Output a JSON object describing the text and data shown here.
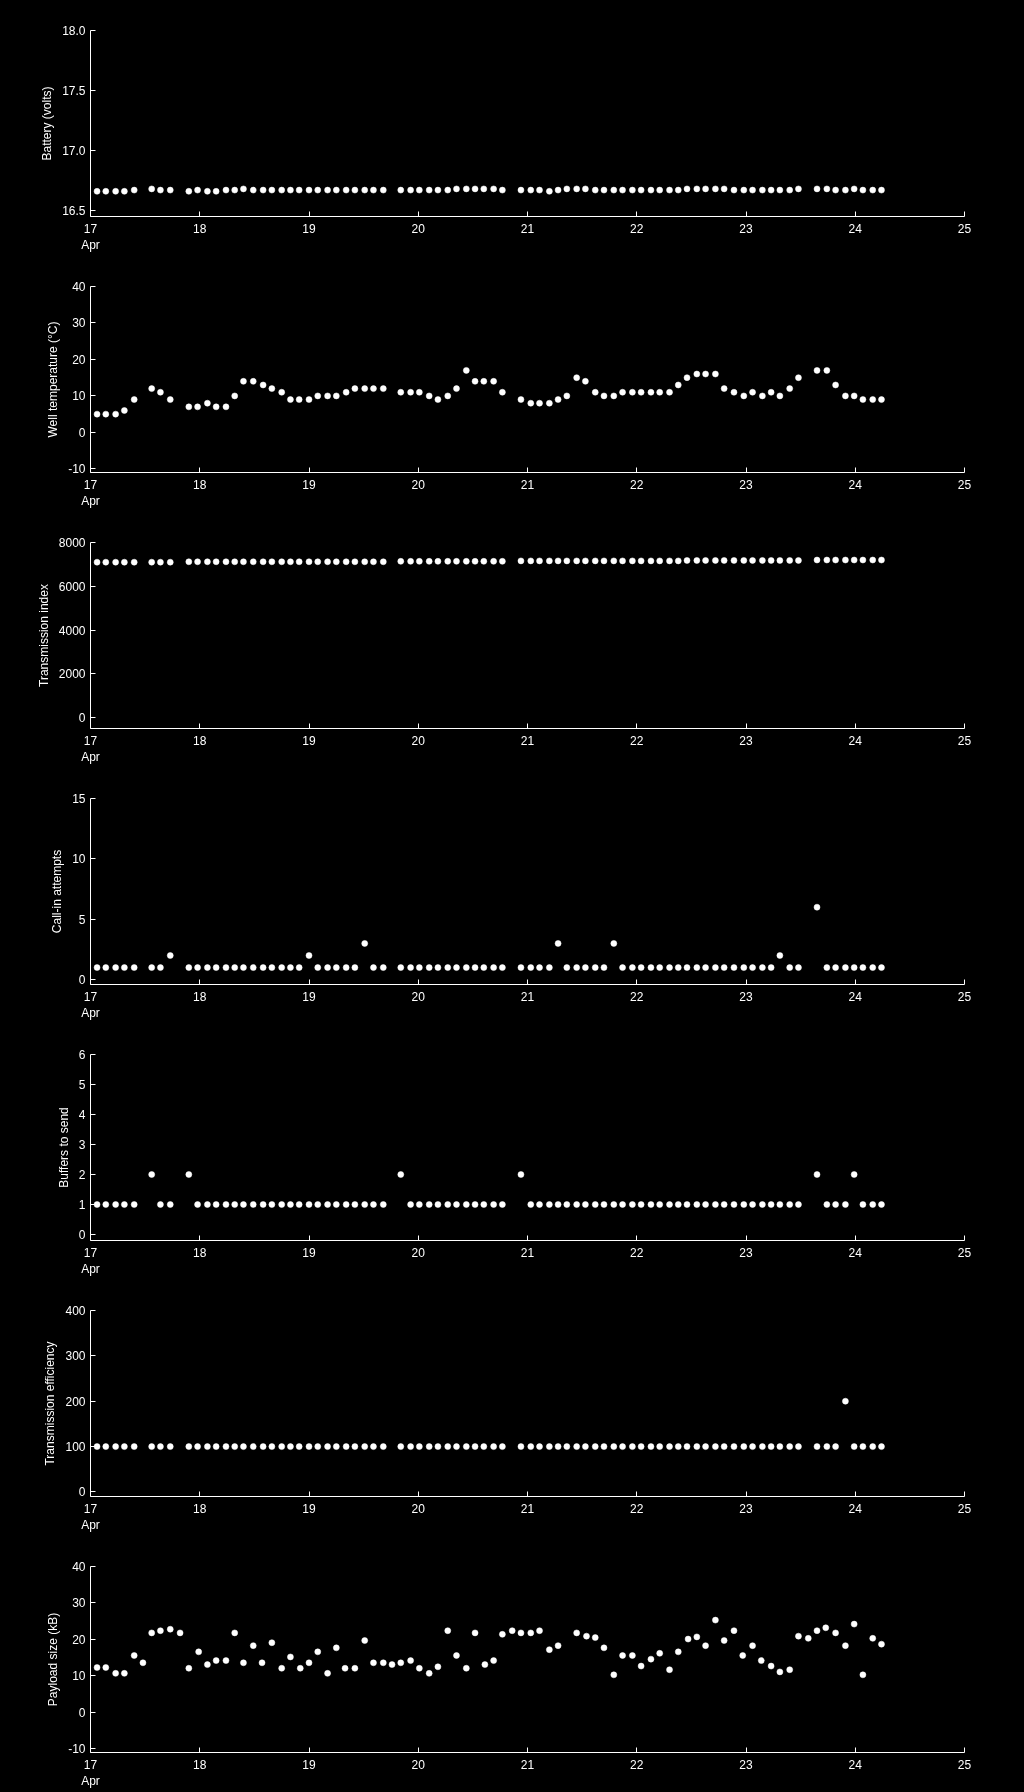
{
  "chart_data": [
    {
      "type": "scatter",
      "ylabel": "Battery (volts)",
      "color": "#ffffff",
      "marker": "circle",
      "grid": false,
      "xlim": [
        17,
        25
      ],
      "xticks": [
        {
          "value": 17,
          "label": "17\nApr"
        },
        18,
        19,
        20,
        21,
        22,
        23,
        24,
        25
      ],
      "ylim": [
        16.45,
        18.0
      ],
      "yticks": [
        {
          "value": 16.5,
          "label": "16.5"
        },
        {
          "value": 17,
          "label": "17.0"
        },
        {
          "value": 17.5,
          "label": "17.5"
        },
        {
          "value": 18,
          "label": "18.0"
        }
      ],
      "x": [
        17.06,
        17.14,
        17.23,
        17.31,
        17.4,
        17.56,
        17.64,
        17.73,
        17.9,
        17.98,
        18.07,
        18.15,
        18.24,
        18.32,
        18.4,
        18.49,
        18.58,
        18.66,
        18.75,
        18.83,
        18.91,
        19.0,
        19.08,
        19.17,
        19.25,
        19.34,
        19.42,
        19.51,
        19.59,
        19.68,
        19.84,
        19.93,
        20.01,
        20.1,
        20.18,
        20.27,
        20.35,
        20.44,
        20.52,
        20.6,
        20.69,
        20.77,
        20.94,
        21.03,
        21.11,
        21.2,
        21.28,
        21.36,
        21.45,
        21.53,
        21.62,
        21.7,
        21.79,
        21.87,
        21.96,
        22.04,
        22.13,
        22.21,
        22.3,
        22.38,
        22.46,
        22.55,
        22.63,
        22.72,
        22.8,
        22.89,
        22.98,
        23.06,
        23.15,
        23.23,
        23.31,
        23.4,
        23.48,
        23.65,
        23.74,
        23.82,
        23.91,
        23.99,
        24.07,
        24.16,
        24.24
      ],
      "values": [
        16.66,
        16.66,
        16.66,
        16.66,
        16.67,
        16.68,
        16.67,
        16.67,
        16.66,
        16.67,
        16.66,
        16.66,
        16.67,
        16.67,
        16.68,
        16.67,
        16.67,
        16.67,
        16.67,
        16.67,
        16.67,
        16.67,
        16.67,
        16.67,
        16.67,
        16.67,
        16.67,
        16.67,
        16.67,
        16.67,
        16.67,
        16.67,
        16.67,
        16.67,
        16.67,
        16.67,
        16.68,
        16.68,
        16.68,
        16.68,
        16.68,
        16.67,
        16.67,
        16.67,
        16.67,
        16.66,
        16.67,
        16.68,
        16.68,
        16.68,
        16.67,
        16.67,
        16.67,
        16.67,
        16.67,
        16.67,
        16.67,
        16.67,
        16.67,
        16.67,
        16.68,
        16.68,
        16.68,
        16.68,
        16.68,
        16.67,
        16.67,
        16.67,
        16.67,
        16.67,
        16.67,
        16.67,
        16.68,
        16.68,
        16.68,
        16.67,
        16.67,
        16.68,
        16.67,
        16.67,
        16.67
      ]
    },
    {
      "type": "scatter",
      "ylabel": "Well temperature (°C)",
      "color": "#ffffff",
      "marker": "circle",
      "grid": false,
      "xlim": [
        17,
        25
      ],
      "xticks": [
        {
          "value": 17,
          "label": "17\nApr"
        },
        18,
        19,
        20,
        21,
        22,
        23,
        24,
        25
      ],
      "ylim": [
        -11,
        40
      ],
      "yticks": [
        -10,
        0,
        10,
        20,
        30,
        40
      ],
      "x": [
        17.06,
        17.14,
        17.23,
        17.31,
        17.4,
        17.56,
        17.64,
        17.73,
        17.9,
        17.98,
        18.07,
        18.15,
        18.24,
        18.32,
        18.4,
        18.49,
        18.58,
        18.66,
        18.75,
        18.83,
        18.91,
        19.0,
        19.08,
        19.17,
        19.25,
        19.34,
        19.42,
        19.51,
        19.59,
        19.68,
        19.84,
        19.93,
        20.01,
        20.1,
        20.18,
        20.27,
        20.35,
        20.44,
        20.52,
        20.6,
        20.69,
        20.77,
        20.94,
        21.03,
        21.11,
        21.2,
        21.28,
        21.36,
        21.45,
        21.53,
        21.62,
        21.7,
        21.79,
        21.87,
        21.96,
        22.04,
        22.13,
        22.21,
        22.3,
        22.38,
        22.46,
        22.55,
        22.63,
        22.72,
        22.8,
        22.89,
        22.98,
        23.06,
        23.15,
        23.23,
        23.31,
        23.4,
        23.48,
        23.65,
        23.74,
        23.82,
        23.91,
        23.99,
        24.07,
        24.16,
        24.24
      ],
      "values": [
        5,
        5,
        5,
        6,
        9,
        12,
        11,
        9,
        7,
        7,
        8,
        7,
        7,
        10,
        14,
        14,
        13,
        12,
        11,
        9,
        9,
        9,
        10,
        10,
        10,
        11,
        12,
        12,
        12,
        12,
        11,
        11,
        11,
        10,
        9,
        10,
        12,
        17,
        14,
        14,
        14,
        11,
        9,
        8,
        8,
        8,
        9,
        10,
        15,
        14,
        11,
        10,
        10,
        11,
        11,
        11,
        11,
        11,
        11,
        13,
        15,
        16,
        16,
        16,
        12,
        11,
        10,
        11,
        10,
        11,
        10,
        12,
        15,
        17,
        17,
        13,
        10,
        10,
        9,
        9,
        9
      ]
    },
    {
      "type": "scatter",
      "ylabel": "Transmission index",
      "color": "#ffffff",
      "marker": "circle",
      "grid": false,
      "xlim": [
        17,
        25
      ],
      "xticks": [
        {
          "value": 17,
          "label": "17\nApr"
        },
        18,
        19,
        20,
        21,
        22,
        23,
        24,
        25
      ],
      "ylim": [
        -500,
        8000
      ],
      "yticks": [
        0,
        2000,
        4000,
        6000,
        8000
      ],
      "x": [
        17.06,
        17.14,
        17.23,
        17.31,
        17.4,
        17.56,
        17.64,
        17.73,
        17.9,
        17.98,
        18.07,
        18.15,
        18.24,
        18.32,
        18.4,
        18.49,
        18.58,
        18.66,
        18.75,
        18.83,
        18.91,
        19.0,
        19.08,
        19.17,
        19.25,
        19.34,
        19.42,
        19.51,
        19.59,
        19.68,
        19.84,
        19.93,
        20.01,
        20.1,
        20.18,
        20.27,
        20.35,
        20.44,
        20.52,
        20.6,
        20.69,
        20.77,
        20.94,
        21.03,
        21.11,
        21.2,
        21.28,
        21.36,
        21.45,
        21.53,
        21.62,
        21.7,
        21.79,
        21.87,
        21.96,
        22.04,
        22.13,
        22.21,
        22.3,
        22.38,
        22.46,
        22.55,
        22.63,
        22.72,
        22.8,
        22.89,
        22.98,
        23.06,
        23.15,
        23.23,
        23.31,
        23.4,
        23.48,
        23.65,
        23.74,
        23.82,
        23.91,
        23.99,
        24.07,
        24.16,
        24.24
      ],
      "values": [
        7100,
        7100,
        7100,
        7100,
        7100,
        7100,
        7100,
        7100,
        7120,
        7120,
        7120,
        7120,
        7120,
        7120,
        7120,
        7120,
        7120,
        7120,
        7120,
        7120,
        7120,
        7120,
        7120,
        7120,
        7120,
        7120,
        7120,
        7120,
        7120,
        7120,
        7140,
        7140,
        7140,
        7140,
        7140,
        7140,
        7140,
        7140,
        7140,
        7140,
        7140,
        7140,
        7160,
        7160,
        7160,
        7160,
        7160,
        7160,
        7160,
        7160,
        7160,
        7160,
        7160,
        7160,
        7160,
        7160,
        7160,
        7160,
        7160,
        7160,
        7180,
        7180,
        7180,
        7180,
        7180,
        7180,
        7180,
        7180,
        7180,
        7180,
        7180,
        7180,
        7180,
        7200,
        7200,
        7200,
        7200,
        7200,
        7200,
        7200,
        7200
      ]
    },
    {
      "type": "scatter",
      "ylabel": "Call-in attempts",
      "color": "#ffffff",
      "marker": "circle",
      "grid": false,
      "xlim": [
        17,
        25
      ],
      "xticks": [
        {
          "value": 17,
          "label": "17\nApr"
        },
        18,
        19,
        20,
        21,
        22,
        23,
        24,
        25
      ],
      "ylim": [
        -0.4,
        15
      ],
      "yticks": [
        0,
        5,
        10,
        15
      ],
      "x": [
        17.06,
        17.14,
        17.23,
        17.31,
        17.4,
        17.56,
        17.64,
        17.73,
        17.9,
        17.98,
        18.07,
        18.15,
        18.24,
        18.32,
        18.4,
        18.49,
        18.58,
        18.66,
        18.75,
        18.83,
        18.91,
        19.0,
        19.08,
        19.17,
        19.25,
        19.34,
        19.42,
        19.51,
        19.59,
        19.68,
        19.84,
        19.93,
        20.01,
        20.1,
        20.18,
        20.27,
        20.35,
        20.44,
        20.52,
        20.6,
        20.69,
        20.77,
        20.94,
        21.03,
        21.11,
        21.2,
        21.28,
        21.36,
        21.45,
        21.53,
        21.62,
        21.7,
        21.79,
        21.87,
        21.96,
        22.04,
        22.13,
        22.21,
        22.3,
        22.38,
        22.46,
        22.55,
        22.63,
        22.72,
        22.8,
        22.89,
        22.98,
        23.06,
        23.15,
        23.23,
        23.31,
        23.4,
        23.48,
        23.65,
        23.74,
        23.82,
        23.91,
        23.99,
        24.07,
        24.16,
        24.24
      ],
      "values": [
        1,
        1,
        1,
        1,
        1,
        1,
        1,
        2,
        1,
        1,
        1,
        1,
        1,
        1,
        1,
        1,
        1,
        1,
        1,
        1,
        1,
        2,
        1,
        1,
        1,
        1,
        1,
        3,
        1,
        1,
        1,
        1,
        1,
        1,
        1,
        1,
        1,
        1,
        1,
        1,
        1,
        1,
        1,
        1,
        1,
        1,
        3,
        1,
        1,
        1,
        1,
        1,
        3,
        1,
        1,
        1,
        1,
        1,
        1,
        1,
        1,
        1,
        1,
        1,
        1,
        1,
        1,
        1,
        1,
        1,
        2,
        1,
        1,
        6,
        1,
        1,
        1,
        1,
        1,
        1,
        1
      ]
    },
    {
      "type": "scatter",
      "ylabel": "Buffers to send",
      "color": "#ffffff",
      "marker": "circle",
      "grid": false,
      "xlim": [
        17,
        25
      ],
      "xticks": [
        {
          "value": 17,
          "label": "17\nApr"
        },
        18,
        19,
        20,
        21,
        22,
        23,
        24,
        25
      ],
      "ylim": [
        -0.2,
        6
      ],
      "yticks": [
        0,
        1,
        2,
        3,
        4,
        5,
        6
      ],
      "x": [
        17.06,
        17.14,
        17.23,
        17.31,
        17.4,
        17.56,
        17.64,
        17.73,
        17.9,
        17.98,
        18.07,
        18.15,
        18.24,
        18.32,
        18.4,
        18.49,
        18.58,
        18.66,
        18.75,
        18.83,
        18.91,
        19.0,
        19.08,
        19.17,
        19.25,
        19.34,
        19.42,
        19.51,
        19.59,
        19.68,
        19.84,
        19.93,
        20.01,
        20.1,
        20.18,
        20.27,
        20.35,
        20.44,
        20.52,
        20.6,
        20.69,
        20.77,
        20.94,
        21.03,
        21.11,
        21.2,
        21.28,
        21.36,
        21.45,
        21.53,
        21.62,
        21.7,
        21.79,
        21.87,
        21.96,
        22.04,
        22.13,
        22.21,
        22.3,
        22.38,
        22.46,
        22.55,
        22.63,
        22.72,
        22.8,
        22.89,
        22.98,
        23.06,
        23.15,
        23.23,
        23.31,
        23.4,
        23.48,
        23.65,
        23.74,
        23.82,
        23.91,
        23.99,
        24.07,
        24.16,
        24.24
      ],
      "values": [
        1,
        1,
        1,
        1,
        1,
        2,
        1,
        1,
        2,
        1,
        1,
        1,
        1,
        1,
        1,
        1,
        1,
        1,
        1,
        1,
        1,
        1,
        1,
        1,
        1,
        1,
        1,
        1,
        1,
        1,
        2,
        1,
        1,
        1,
        1,
        1,
        1,
        1,
        1,
        1,
        1,
        1,
        2,
        1,
        1,
        1,
        1,
        1,
        1,
        1,
        1,
        1,
        1,
        1,
        1,
        1,
        1,
        1,
        1,
        1,
        1,
        1,
        1,
        1,
        1,
        1,
        1,
        1,
        1,
        1,
        1,
        1,
        1,
        2,
        1,
        1,
        1,
        2,
        1,
        1,
        1
      ]
    },
    {
      "type": "scatter",
      "ylabel": "Transmission efficiency",
      "color": "#ffffff",
      "marker": "circle",
      "grid": false,
      "xlim": [
        17,
        25
      ],
      "xticks": [
        {
          "value": 17,
          "label": "17\nApr"
        },
        18,
        19,
        20,
        21,
        22,
        23,
        24,
        25
      ],
      "ylim": [
        -10,
        400
      ],
      "yticks": [
        0,
        100,
        200,
        300,
        400
      ],
      "x": [
        17.06,
        17.14,
        17.23,
        17.31,
        17.4,
        17.56,
        17.64,
        17.73,
        17.9,
        17.98,
        18.07,
        18.15,
        18.24,
        18.32,
        18.4,
        18.49,
        18.58,
        18.66,
        18.75,
        18.83,
        18.91,
        19.0,
        19.08,
        19.17,
        19.25,
        19.34,
        19.42,
        19.51,
        19.59,
        19.68,
        19.84,
        19.93,
        20.01,
        20.1,
        20.18,
        20.27,
        20.35,
        20.44,
        20.52,
        20.6,
        20.69,
        20.77,
        20.94,
        21.03,
        21.11,
        21.2,
        21.28,
        21.36,
        21.45,
        21.53,
        21.62,
        21.7,
        21.79,
        21.87,
        21.96,
        22.04,
        22.13,
        22.21,
        22.3,
        22.38,
        22.46,
        22.55,
        22.63,
        22.72,
        22.8,
        22.89,
        22.98,
        23.06,
        23.15,
        23.23,
        23.31,
        23.4,
        23.48,
        23.65,
        23.74,
        23.82,
        23.91,
        23.99,
        24.07,
        24.16,
        24.24
      ],
      "values": [
        100,
        100,
        100,
        100,
        100,
        100,
        100,
        100,
        100,
        100,
        100,
        100,
        100,
        100,
        100,
        100,
        100,
        100,
        100,
        100,
        100,
        100,
        100,
        100,
        100,
        100,
        100,
        100,
        100,
        100,
        100,
        100,
        100,
        100,
        100,
        100,
        100,
        100,
        100,
        100,
        100,
        100,
        100,
        100,
        100,
        100,
        100,
        100,
        100,
        100,
        100,
        100,
        100,
        100,
        100,
        100,
        100,
        100,
        100,
        100,
        100,
        100,
        100,
        100,
        100,
        100,
        100,
        100,
        100,
        100,
        100,
        100,
        100,
        100,
        100,
        100,
        200,
        100,
        100,
        100,
        100
      ]
    },
    {
      "type": "scatter",
      "ylabel": "Payload size (kB)",
      "color": "#ffffff",
      "marker": "circle",
      "grid": false,
      "xlim": [
        17,
        25
      ],
      "xticks": [
        {
          "value": 17,
          "label": "17\nApr"
        },
        18,
        19,
        20,
        21,
        22,
        23,
        24,
        25
      ],
      "ylim": [
        -11,
        40
      ],
      "yticks": [
        -10,
        0,
        10,
        20,
        30,
        40
      ],
      "x": [
        17.06,
        17.14,
        17.23,
        17.31,
        17.4,
        17.48,
        17.56,
        17.64,
        17.73,
        17.82,
        17.9,
        17.99,
        18.07,
        18.15,
        18.24,
        18.32,
        18.4,
        18.49,
        18.57,
        18.66,
        18.75,
        18.83,
        18.92,
        19.0,
        19.08,
        19.17,
        19.25,
        19.33,
        19.42,
        19.51,
        19.59,
        19.68,
        19.76,
        19.84,
        19.93,
        20.01,
        20.1,
        20.18,
        20.27,
        20.35,
        20.44,
        20.52,
        20.61,
        20.69,
        20.77,
        20.86,
        20.94,
        21.03,
        21.11,
        21.2,
        21.28,
        21.45,
        21.54,
        21.62,
        21.7,
        21.79,
        21.87,
        21.96,
        22.04,
        22.13,
        22.21,
        22.3,
        22.38,
        22.47,
        22.55,
        22.63,
        22.72,
        22.8,
        22.89,
        22.97,
        23.06,
        23.14,
        23.23,
        23.31,
        23.4,
        23.48,
        23.57,
        23.65,
        23.73,
        23.82,
        23.91,
        23.99,
        24.07,
        24.16,
        24.24
      ],
      "values": [
        12.3,
        12.3,
        10.7,
        10.7,
        15.6,
        13.6,
        21.8,
        22.4,
        22.8,
        21.8,
        12.1,
        16.6,
        13.1,
        14.2,
        14.2,
        21.8,
        13.6,
        18.3,
        13.6,
        19.1,
        12.1,
        15.2,
        12.1,
        13.6,
        16.6,
        10.7,
        17.7,
        12.1,
        12.1,
        19.7,
        13.6,
        13.6,
        13.1,
        13.6,
        14.2,
        12.1,
        10.7,
        12.5,
        22.4,
        15.6,
        12.1,
        21.8,
        13.1,
        14.2,
        21.4,
        22.4,
        21.8,
        21.8,
        22.4,
        17.2,
        18.3,
        21.8,
        20.9,
        20.5,
        17.7,
        10.3,
        15.6,
        15.6,
        12.7,
        14.6,
        16.2,
        11.7,
        16.6,
        20.1,
        20.7,
        18.3,
        25.3,
        19.7,
        22.4,
        15.6,
        18.3,
        14.2,
        12.7,
        11.1,
        11.7,
        20.9,
        20.3,
        22.4,
        23.2,
        21.8,
        18.3,
        24.2,
        10.3,
        20.3,
        18.7
      ]
    }
  ]
}
